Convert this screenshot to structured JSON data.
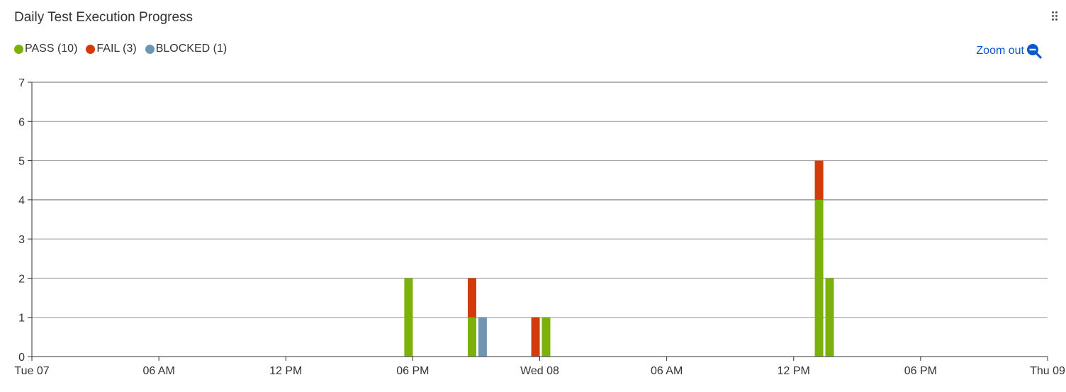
{
  "widget": {
    "title": "Daily Test Execution Progress",
    "zoom_out_label": "Zoom out",
    "drag_handle_icon": "drag-dots-icon",
    "zoom_icon": "zoom-out-icon"
  },
  "chart_data": {
    "type": "bar",
    "stacked": true,
    "title": "Daily Test Execution Progress",
    "xlabel": "",
    "ylabel": "",
    "ylim": [
      0,
      7
    ],
    "yticks": [
      0,
      1,
      2,
      3,
      4,
      5,
      6,
      7
    ],
    "xlim_hours": [
      0,
      48
    ],
    "xticks": [
      {
        "hour": 0,
        "label": "Tue 07"
      },
      {
        "hour": 6,
        "label": "06 AM"
      },
      {
        "hour": 12,
        "label": "12 PM"
      },
      {
        "hour": 18,
        "label": "06 PM"
      },
      {
        "hour": 24,
        "label": "Wed 08"
      },
      {
        "hour": 30,
        "label": "06 AM"
      },
      {
        "hour": 36,
        "label": "12 PM"
      },
      {
        "hour": 42,
        "label": "06 PM"
      },
      {
        "hour": 48,
        "label": "Thu 09"
      }
    ],
    "grid": true,
    "legend_position": "top-left",
    "series": [
      {
        "name": "PASS",
        "legend_label": "PASS (10)",
        "color": "#7cb00a"
      },
      {
        "name": "FAIL",
        "legend_label": "FAIL (3)",
        "color": "#d13c0a"
      },
      {
        "name": "BLOCKED",
        "legend_label": "BLOCKED (1)",
        "color": "#6b97b4"
      }
    ],
    "points": [
      {
        "hour": 17.8,
        "PASS": 2,
        "FAIL": 0,
        "BLOCKED": 0
      },
      {
        "hour": 20.8,
        "PASS": 1,
        "FAIL": 1,
        "BLOCKED": 0
      },
      {
        "hour": 21.3,
        "PASS": 0,
        "FAIL": 0,
        "BLOCKED": 1
      },
      {
        "hour": 23.8,
        "PASS": 0,
        "FAIL": 1,
        "BLOCKED": 0
      },
      {
        "hour": 24.3,
        "PASS": 1,
        "FAIL": 0,
        "BLOCKED": 0
      },
      {
        "hour": 37.2,
        "PASS": 4,
        "FAIL": 1,
        "BLOCKED": 0
      },
      {
        "hour": 37.7,
        "PASS": 2,
        "FAIL": 0,
        "BLOCKED": 0
      }
    ]
  }
}
